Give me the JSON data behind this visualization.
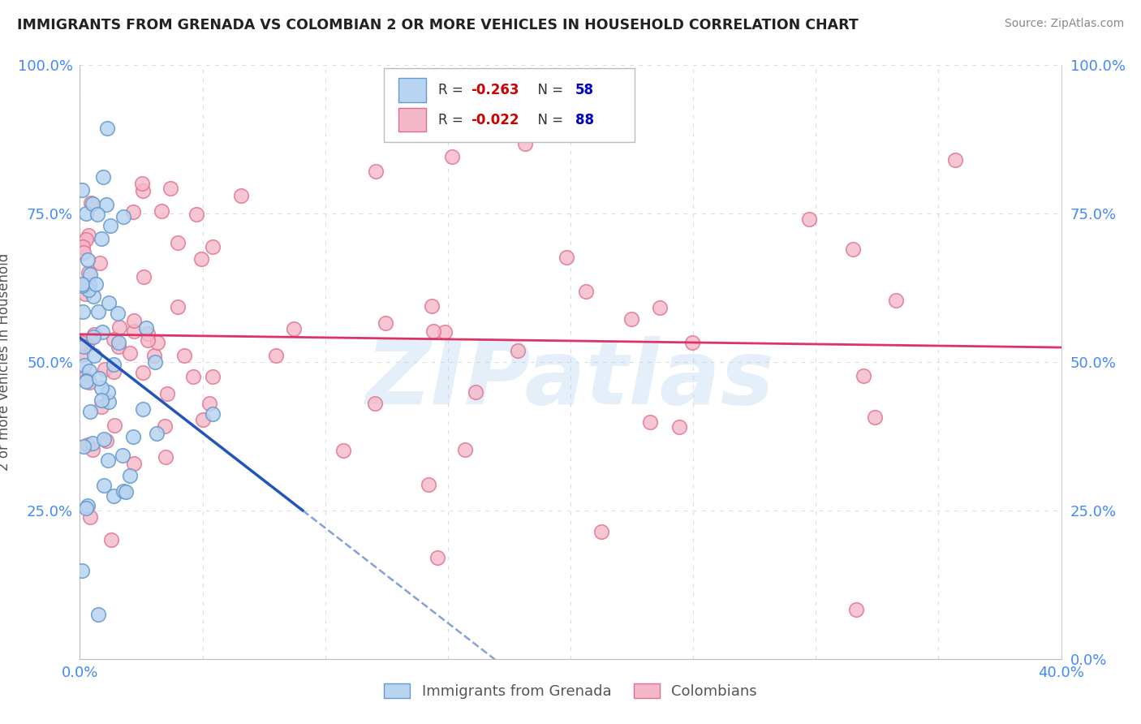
{
  "title": "IMMIGRANTS FROM GRENADA VS COLOMBIAN 2 OR MORE VEHICLES IN HOUSEHOLD CORRELATION CHART",
  "source": "Source: ZipAtlas.com",
  "ylabel": "2 or more Vehicles in Household",
  "xlim": [
    0.0,
    0.4
  ],
  "ylim": [
    0.0,
    1.0
  ],
  "series1_label": "Immigrants from Grenada",
  "series1_R": -0.263,
  "series1_N": 58,
  "series1_color": "#b8d4f0",
  "series1_edge_color": "#6699cc",
  "series2_label": "Colombians",
  "series2_R": -0.022,
  "series2_N": 88,
  "series2_color": "#f5b8c8",
  "series2_edge_color": "#e07090",
  "trendline1_color": "#2255bb",
  "trendline2_color": "#dd3366",
  "watermark": "ZIPatlas",
  "watermark_color": "#aaccee",
  "grid_color": "#dddddd",
  "title_color": "#222222",
  "source_color": "#888888",
  "tick_color": "#4488ff",
  "ylabel_color": "#555555"
}
